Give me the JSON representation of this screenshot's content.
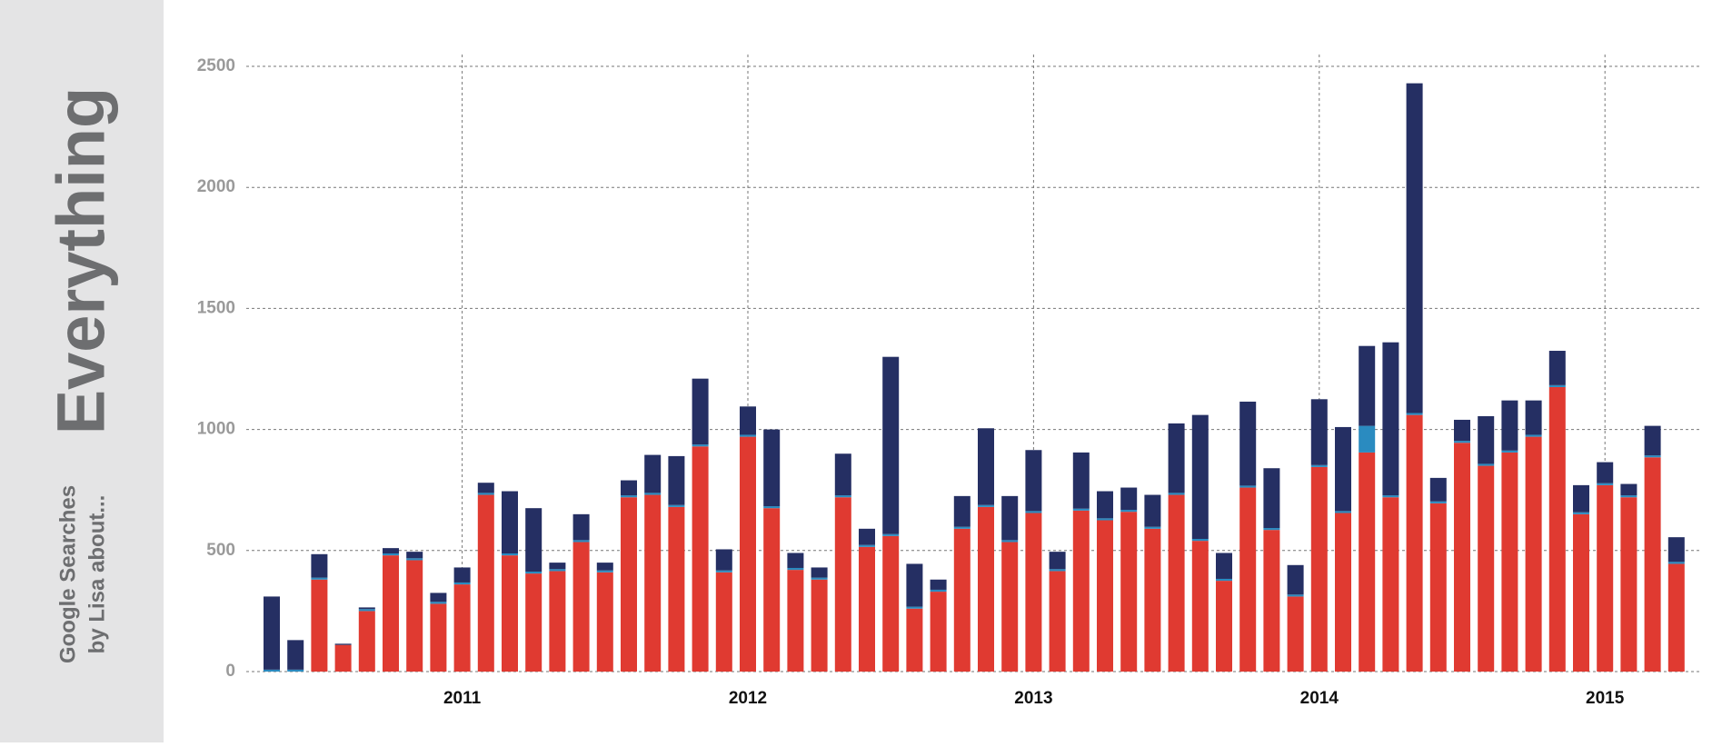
{
  "chart_data": {
    "type": "stacked-bar",
    "title": "Everything",
    "subtitle": [
      "Google Searches",
      "by Lisa about..."
    ],
    "categories": [
      null,
      null,
      null,
      null,
      null,
      null,
      null,
      null,
      null,
      null,
      null,
      null,
      null,
      null,
      null,
      null,
      null,
      null,
      null,
      null,
      null,
      null,
      null,
      null,
      null,
      null,
      null,
      null,
      null,
      null,
      null,
      null,
      null,
      null,
      null,
      null,
      null,
      null,
      null,
      null,
      null,
      null,
      null,
      null,
      null,
      null,
      null,
      null,
      null,
      null,
      null,
      null,
      null,
      null,
      null,
      null,
      null,
      null,
      null,
      null
    ],
    "series": [
      {
        "color": "#e03a31",
        "values": [
          0,
          0,
          380,
          110,
          250,
          480,
          460,
          280,
          360,
          730,
          480,
          405,
          415,
          535,
          410,
          720,
          730,
          680,
          930,
          410,
          970,
          675,
          420,
          380,
          720,
          515,
          560,
          260,
          330,
          590,
          680,
          535,
          655,
          415,
          665,
          625,
          660,
          590,
          730,
          540,
          375,
          760,
          585,
          310,
          845,
          655,
          905,
          720,
          1060,
          695,
          945,
          850,
          905,
          970,
          1175,
          650,
          770,
          720,
          885,
          445
        ]
      },
      {
        "color": "#2a8bc0",
        "values": [
          8,
          8,
          8,
          0,
          8,
          8,
          8,
          8,
          8,
          8,
          8,
          8,
          8,
          8,
          8,
          8,
          8,
          8,
          8,
          8,
          8,
          8,
          8,
          8,
          8,
          8,
          8,
          8,
          8,
          8,
          8,
          8,
          8,
          8,
          8,
          8,
          8,
          8,
          8,
          8,
          8,
          8,
          8,
          8,
          8,
          8,
          110,
          8,
          8,
          8,
          8,
          8,
          8,
          8,
          8,
          8,
          8,
          8,
          8,
          8
        ]
      },
      {
        "color": "#252f63",
        "values": [
          302,
          122,
          97,
          5,
          7,
          22,
          27,
          37,
          62,
          42,
          257,
          262,
          27,
          107,
          32,
          62,
          157,
          202,
          272,
          87,
          117,
          317,
          62,
          42,
          172,
          67,
          732,
          177,
          42,
          127,
          317,
          182,
          252,
          72,
          232,
          112,
          92,
          132,
          287,
          512,
          107,
          347,
          247,
          122,
          272,
          347,
          330,
          632,
          1362,
          97,
          87,
          197,
          207,
          142,
          142,
          112,
          87,
          47,
          122,
          102
        ]
      }
    ],
    "xticks": [
      {
        "value": 8,
        "label": "2011"
      },
      {
        "value": 20,
        "label": "2012"
      },
      {
        "value": 32,
        "label": "2013"
      },
      {
        "value": 44,
        "label": "2014"
      },
      {
        "value": 56,
        "label": "2015"
      }
    ],
    "ylim": [
      0,
      2500
    ],
    "yticks": [
      0,
      500,
      1000,
      1500,
      2000,
      2500
    ],
    "grid": true
  }
}
